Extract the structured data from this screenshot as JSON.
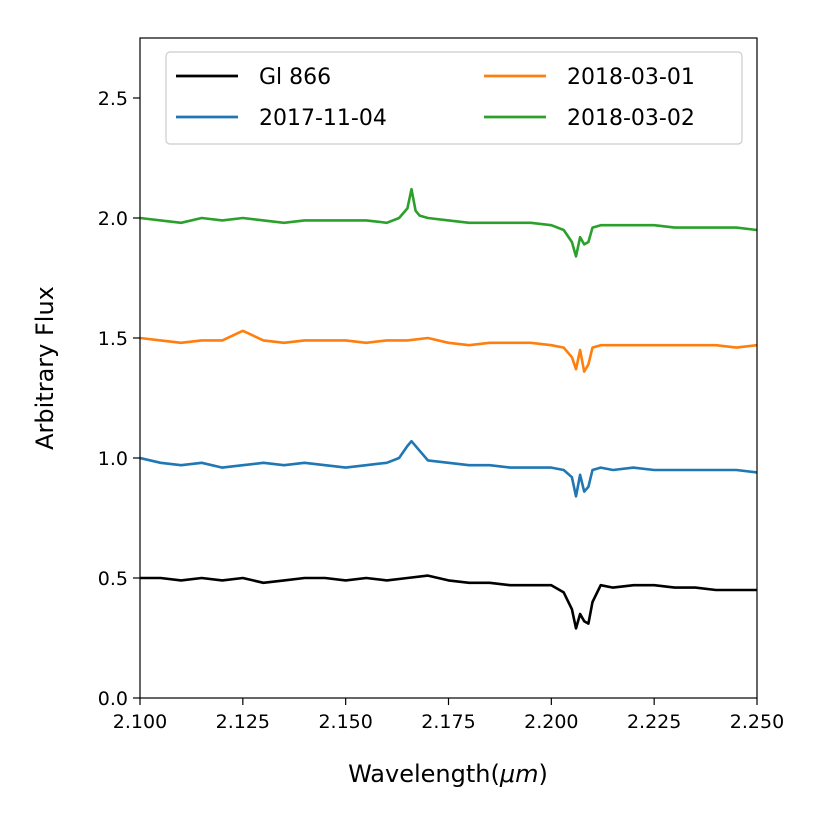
{
  "chart_data": {
    "type": "line",
    "xlabel": "Wavelength(",
    "xlabel_unit": "μm",
    "xlabel_close": ")",
    "ylabel": "Arbitrary Flux",
    "xlim": [
      2.1,
      2.25
    ],
    "ylim": [
      0.0,
      2.75
    ],
    "xticks": [
      2.1,
      2.125,
      2.15,
      2.175,
      2.2,
      2.225,
      2.25
    ],
    "xtick_labels": [
      "2.100",
      "2.125",
      "2.150",
      "2.175",
      "2.200",
      "2.225",
      "2.250"
    ],
    "yticks": [
      0.0,
      0.5,
      1.0,
      1.5,
      2.0,
      2.5
    ],
    "ytick_labels": [
      "0.0",
      "0.5",
      "1.0",
      "1.5",
      "2.0",
      "2.5"
    ],
    "grid": false,
    "legend": {
      "placement": "top",
      "columns": 2
    },
    "series": [
      {
        "name": "Gl 866",
        "color": "#000000",
        "x": [
          2.1,
          2.105,
          2.11,
          2.115,
          2.12,
          2.125,
          2.13,
          2.135,
          2.14,
          2.145,
          2.15,
          2.155,
          2.16,
          2.165,
          2.17,
          2.175,
          2.18,
          2.185,
          2.19,
          2.195,
          2.2,
          2.203,
          2.205,
          2.206,
          2.207,
          2.208,
          2.209,
          2.21,
          2.212,
          2.215,
          2.22,
          2.225,
          2.23,
          2.235,
          2.24,
          2.245,
          2.25
        ],
        "y": [
          0.5,
          0.5,
          0.49,
          0.5,
          0.49,
          0.5,
          0.48,
          0.49,
          0.5,
          0.5,
          0.49,
          0.5,
          0.49,
          0.5,
          0.51,
          0.49,
          0.48,
          0.48,
          0.47,
          0.47,
          0.47,
          0.44,
          0.37,
          0.29,
          0.35,
          0.32,
          0.31,
          0.4,
          0.47,
          0.46,
          0.47,
          0.47,
          0.46,
          0.46,
          0.45,
          0.45,
          0.45
        ]
      },
      {
        "name": "2017-11-04",
        "color": "#1f77b4",
        "x": [
          2.1,
          2.105,
          2.11,
          2.115,
          2.12,
          2.125,
          2.13,
          2.135,
          2.14,
          2.145,
          2.15,
          2.155,
          2.16,
          2.163,
          2.165,
          2.166,
          2.168,
          2.17,
          2.175,
          2.18,
          2.185,
          2.19,
          2.195,
          2.2,
          2.203,
          2.205,
          2.206,
          2.207,
          2.208,
          2.209,
          2.21,
          2.212,
          2.215,
          2.22,
          2.225,
          2.23,
          2.235,
          2.24,
          2.245,
          2.25
        ],
        "y": [
          1.0,
          0.98,
          0.97,
          0.98,
          0.96,
          0.97,
          0.98,
          0.97,
          0.98,
          0.97,
          0.96,
          0.97,
          0.98,
          1.0,
          1.05,
          1.07,
          1.03,
          0.99,
          0.98,
          0.97,
          0.97,
          0.96,
          0.96,
          0.96,
          0.95,
          0.92,
          0.84,
          0.93,
          0.86,
          0.88,
          0.95,
          0.96,
          0.95,
          0.96,
          0.95,
          0.95,
          0.95,
          0.95,
          0.95,
          0.94
        ]
      },
      {
        "name": "2018-03-01",
        "color": "#ff7f0e",
        "x": [
          2.1,
          2.105,
          2.11,
          2.115,
          2.12,
          2.125,
          2.13,
          2.135,
          2.14,
          2.145,
          2.15,
          2.155,
          2.16,
          2.165,
          2.17,
          2.175,
          2.18,
          2.185,
          2.19,
          2.195,
          2.2,
          2.203,
          2.205,
          2.206,
          2.207,
          2.208,
          2.209,
          2.21,
          2.212,
          2.215,
          2.22,
          2.225,
          2.23,
          2.235,
          2.24,
          2.245,
          2.25
        ],
        "y": [
          1.5,
          1.49,
          1.48,
          1.49,
          1.49,
          1.53,
          1.49,
          1.48,
          1.49,
          1.49,
          1.49,
          1.48,
          1.49,
          1.49,
          1.5,
          1.48,
          1.47,
          1.48,
          1.48,
          1.48,
          1.47,
          1.46,
          1.42,
          1.37,
          1.45,
          1.36,
          1.39,
          1.46,
          1.47,
          1.47,
          1.47,
          1.47,
          1.47,
          1.47,
          1.47,
          1.46,
          1.47
        ]
      },
      {
        "name": "2018-03-02",
        "color": "#2ca02c",
        "x": [
          2.1,
          2.105,
          2.11,
          2.115,
          2.12,
          2.125,
          2.13,
          2.135,
          2.14,
          2.145,
          2.15,
          2.155,
          2.16,
          2.163,
          2.165,
          2.166,
          2.167,
          2.168,
          2.17,
          2.175,
          2.18,
          2.185,
          2.19,
          2.195,
          2.2,
          2.203,
          2.205,
          2.206,
          2.207,
          2.208,
          2.209,
          2.21,
          2.212,
          2.215,
          2.22,
          2.225,
          2.23,
          2.235,
          2.24,
          2.245,
          2.25
        ],
        "y": [
          2.0,
          1.99,
          1.98,
          2.0,
          1.99,
          2.0,
          1.99,
          1.98,
          1.99,
          1.99,
          1.99,
          1.99,
          1.98,
          2.0,
          2.04,
          2.12,
          2.03,
          2.01,
          2.0,
          1.99,
          1.98,
          1.98,
          1.98,
          1.98,
          1.97,
          1.95,
          1.9,
          1.84,
          1.92,
          1.89,
          1.9,
          1.96,
          1.97,
          1.97,
          1.97,
          1.97,
          1.96,
          1.96,
          1.96,
          1.96,
          1.95
        ]
      }
    ]
  }
}
